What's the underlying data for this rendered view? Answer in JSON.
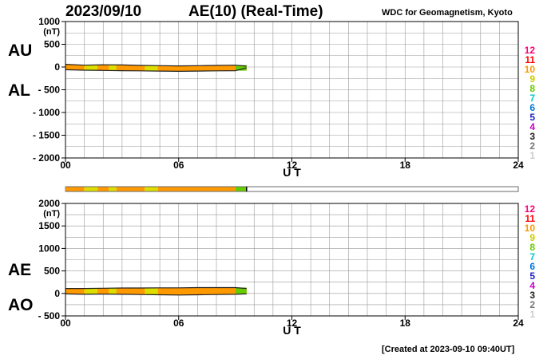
{
  "header": {
    "date": "2023/09/10",
    "title": "AE(10) (Real-Time)",
    "source": "WDC for Geomagnetism, Kyoto"
  },
  "footer": {
    "created": "[Created at 2023-09-10 09:40UT]"
  },
  "colors": {
    "scale": [
      "#cccccc",
      "#777777",
      "#222222",
      "#cc00cc",
      "#2222cc",
      "#0077dd",
      "#00cccc",
      "#66cc00",
      "#cccc00",
      "#ff9900",
      "#ff0000",
      "#ff0077"
    ],
    "band_orange": "#ff9900",
    "band_yellow": "#dddd00",
    "band_green": "#66cc00",
    "grid": "#999999",
    "trace": "#222222"
  },
  "chart_data": [
    {
      "type": "area",
      "panel": "AU-AL",
      "series_labels": [
        "AU",
        "AL"
      ],
      "y_unit": "(nT)",
      "ylim": [
        -2000,
        1000
      ],
      "y_ticks": [
        1000,
        500,
        0,
        -500,
        -1000,
        -1500,
        -2000
      ],
      "y_tick_labels": [
        "1000",
        "500",
        "0",
        "- 500",
        "- 1000",
        "- 1500",
        "- 2000"
      ],
      "xlim": [
        0,
        24
      ],
      "x_ticks": [
        0,
        6,
        12,
        18,
        24
      ],
      "x_tick_labels": [
        "00",
        "06",
        "12",
        "18",
        "24"
      ],
      "xlabel": "U T",
      "grid": true,
      "data_end_hour": 9.6,
      "au_values": {
        "x": [
          0,
          1,
          2,
          3,
          4,
          5,
          6,
          7,
          8,
          9,
          9.6
        ],
        "y": [
          60,
          40,
          50,
          45,
          35,
          30,
          25,
          30,
          35,
          40,
          20
        ]
      },
      "al_values": {
        "x": [
          0,
          1,
          2,
          3,
          4,
          5,
          6,
          7,
          8,
          9,
          9.6
        ],
        "y": [
          -60,
          -70,
          -75,
          -80,
          -85,
          -90,
          -95,
          -90,
          -85,
          -80,
          -20
        ]
      },
      "activity_scale": [
        "12",
        "11",
        "10",
        "9",
        "8",
        "7",
        "6",
        "5",
        "4",
        "3",
        "2",
        "1"
      ]
    },
    {
      "type": "area",
      "panel": "AE-AO",
      "series_labels": [
        "AE",
        "AO"
      ],
      "y_unit": "(nT)",
      "ylim": [
        -500,
        2000
      ],
      "y_ticks": [
        2000,
        1500,
        1000,
        500,
        0,
        -500
      ],
      "y_tick_labels": [
        "2000",
        "1500",
        "1000",
        "500",
        "0",
        "- 500"
      ],
      "xlim": [
        0,
        24
      ],
      "x_ticks": [
        0,
        6,
        12,
        18,
        24
      ],
      "x_tick_labels": [
        "00",
        "06",
        "12",
        "18",
        "24"
      ],
      "xlabel": "U T",
      "grid": true,
      "data_end_hour": 9.6,
      "ae_values": {
        "x": [
          0,
          1,
          2,
          3,
          4,
          5,
          6,
          7,
          8,
          9,
          9.6
        ],
        "y": [
          110,
          110,
          115,
          120,
          120,
          125,
          125,
          130,
          130,
          130,
          110
        ]
      },
      "ao_values": {
        "x": [
          0,
          1,
          2,
          3,
          4,
          5,
          6,
          7,
          8,
          9,
          9.6
        ],
        "y": [
          -10,
          -20,
          -15,
          -20,
          -25,
          -30,
          -35,
          -30,
          -25,
          -20,
          -10
        ]
      },
      "activity_scale": [
        "12",
        "11",
        "10",
        "9",
        "8",
        "7",
        "6",
        "5",
        "4",
        "3",
        "2",
        "1"
      ]
    }
  ],
  "activity_bar": {
    "segments": [
      {
        "start": 0.0,
        "end": 1.0,
        "level": "orange"
      },
      {
        "start": 1.0,
        "end": 1.7,
        "level": "yellow"
      },
      {
        "start": 1.7,
        "end": 2.3,
        "level": "orange"
      },
      {
        "start": 2.3,
        "end": 2.7,
        "level": "yellow"
      },
      {
        "start": 2.7,
        "end": 4.2,
        "level": "orange"
      },
      {
        "start": 4.2,
        "end": 4.9,
        "level": "yellow"
      },
      {
        "start": 4.9,
        "end": 9.0,
        "level": "orange"
      },
      {
        "start": 9.0,
        "end": 9.6,
        "level": "green"
      }
    ]
  }
}
